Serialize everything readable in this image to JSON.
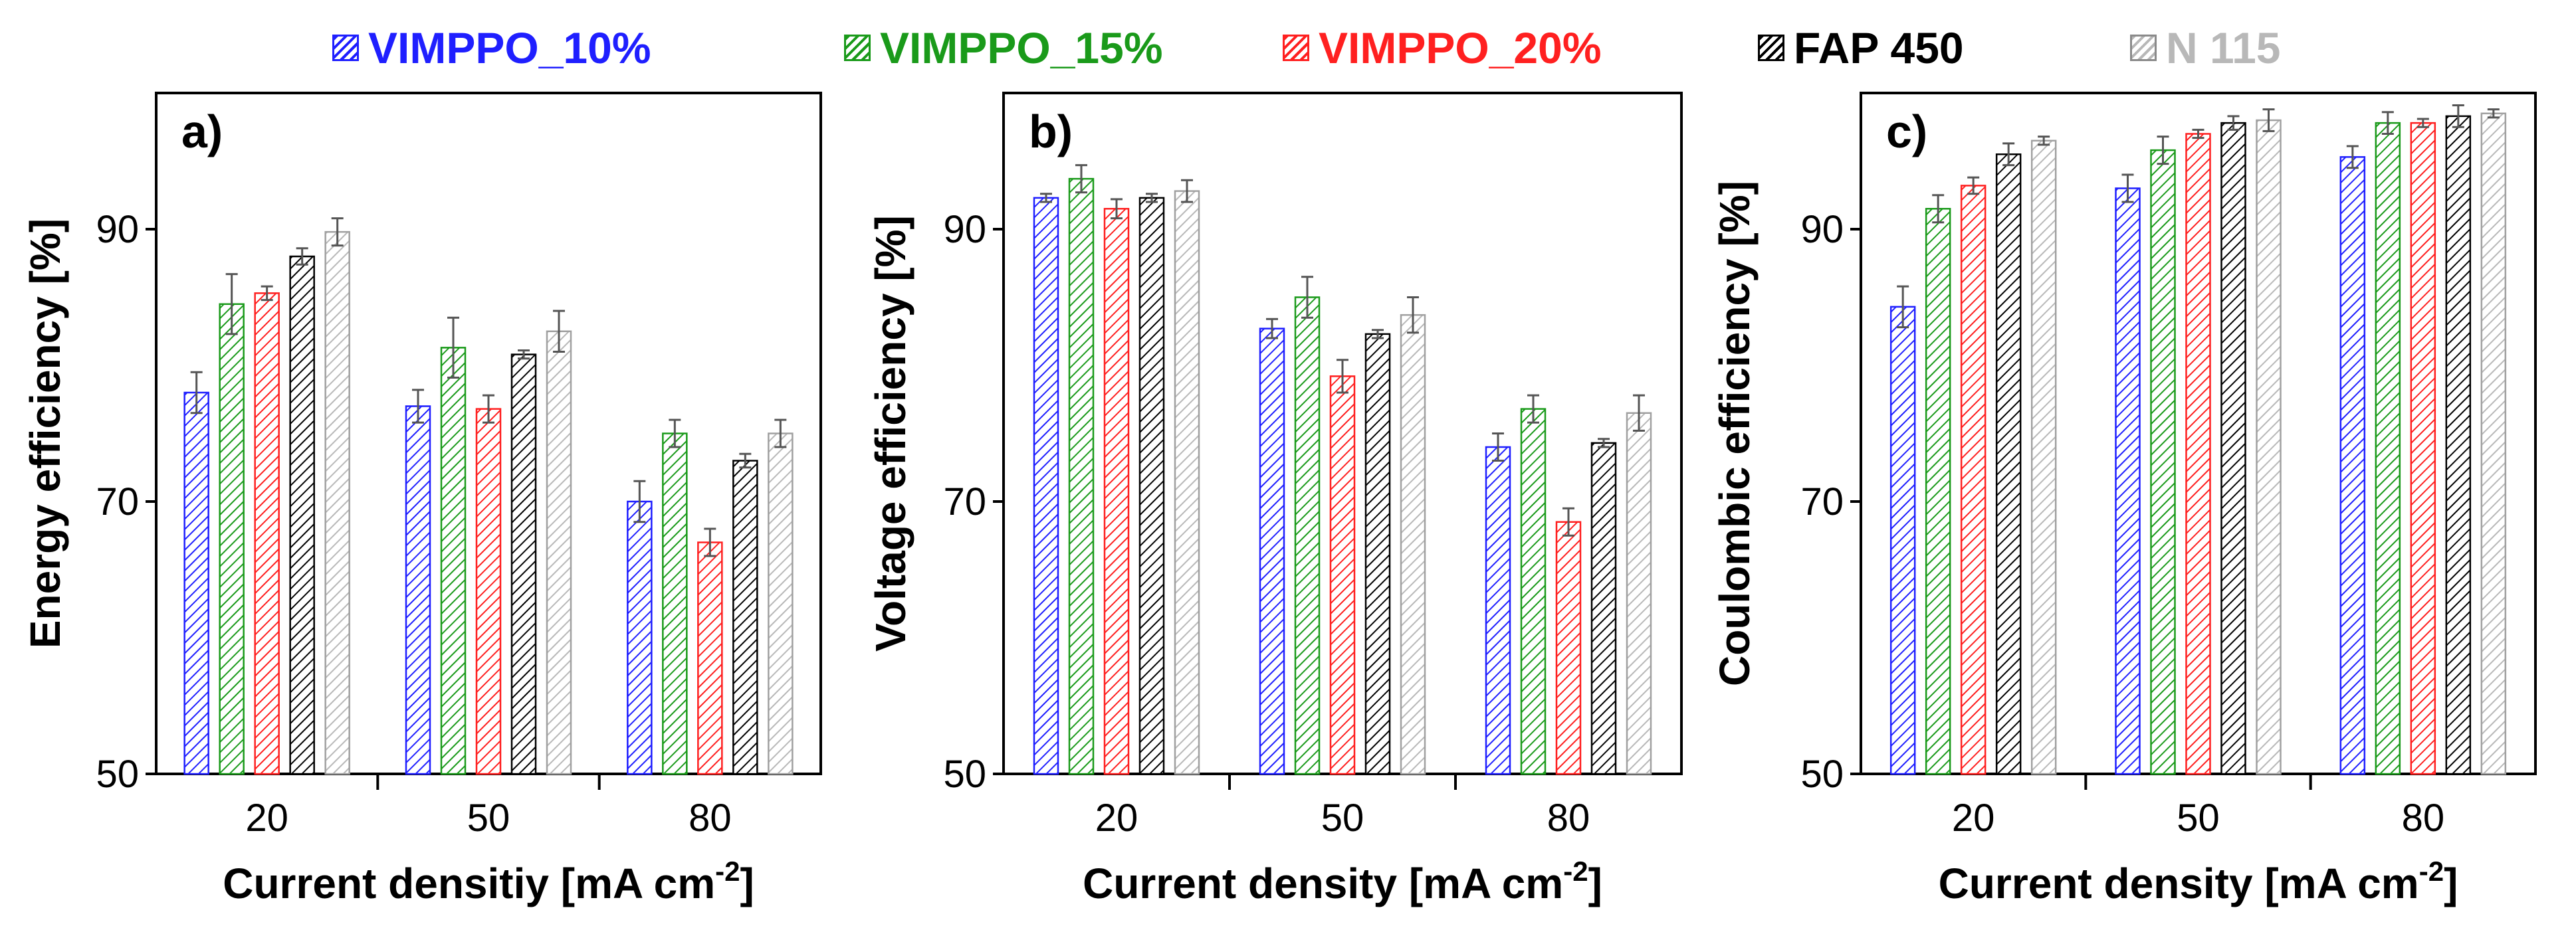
{
  "legend": [
    {
      "name": "VIMPPO_10%",
      "color": "#1f1fff"
    },
    {
      "name": "VIMPPO_15%",
      "color": "#1a9a1a"
    },
    {
      "name": "VIMPPO_20%",
      "color": "#ff2020"
    },
    {
      "name": "FAP 450",
      "color": "#000000"
    },
    {
      "name": "N 115",
      "color": "#b8b8b8"
    }
  ],
  "chart_data": [
    {
      "type": "bar",
      "panel_label": "a)",
      "categories": [
        "20",
        "50",
        "80"
      ],
      "xlabel": "Current densitiy [mA cm",
      "xlabel_sup": "-2",
      "xlabel_end": "]",
      "ylabel": "Energy efficiency [%]",
      "ylim": [
        50,
        100
      ],
      "yticks": [
        "50",
        "70",
        "90"
      ],
      "series": [
        {
          "name": "VIMPPO_10%",
          "values": [
            78.0,
            77.0,
            70.0
          ],
          "errors": [
            1.5,
            1.2,
            1.5
          ]
        },
        {
          "name": "VIMPPO_15%",
          "values": [
            84.5,
            81.3,
            75.0
          ],
          "errors": [
            2.2,
            2.2,
            1.0
          ]
        },
        {
          "name": "VIMPPO_20%",
          "values": [
            85.3,
            76.8,
            67.0
          ],
          "errors": [
            0.5,
            1.0,
            1.0
          ]
        },
        {
          "name": "FAP 450",
          "values": [
            88.0,
            80.8,
            73.0
          ],
          "errors": [
            0.6,
            0.3,
            0.5
          ]
        },
        {
          "name": "N 115",
          "values": [
            89.8,
            82.5,
            75.0
          ],
          "errors": [
            1.0,
            1.5,
            1.0
          ]
        }
      ]
    },
    {
      "type": "bar",
      "panel_label": "b)",
      "categories": [
        "20",
        "50",
        "80"
      ],
      "xlabel": "Current density [mA cm",
      "xlabel_sup": "-2",
      "xlabel_end": "]",
      "ylabel": "Voltage efficiency [%]",
      "ylim": [
        50,
        100
      ],
      "yticks": [
        "50",
        "70",
        "90"
      ],
      "series": [
        {
          "name": "VIMPPO_10%",
          "values": [
            92.3,
            82.7,
            74.0
          ],
          "errors": [
            0.3,
            0.7,
            1.0
          ]
        },
        {
          "name": "VIMPPO_15%",
          "values": [
            93.7,
            85.0,
            76.8
          ],
          "errors": [
            1.0,
            1.5,
            1.0
          ]
        },
        {
          "name": "VIMPPO_20%",
          "values": [
            91.5,
            79.2,
            68.5
          ],
          "errors": [
            0.7,
            1.2,
            1.0
          ]
        },
        {
          "name": "FAP 450",
          "values": [
            92.3,
            82.3,
            74.3
          ],
          "errors": [
            0.3,
            0.3,
            0.3
          ]
        },
        {
          "name": "N 115",
          "values": [
            92.8,
            83.7,
            76.5
          ],
          "errors": [
            0.8,
            1.3,
            1.3
          ]
        }
      ]
    },
    {
      "type": "bar",
      "panel_label": "c)",
      "categories": [
        "20",
        "50",
        "80"
      ],
      "xlabel": "Current density [mA cm",
      "xlabel_sup": "-2",
      "xlabel_end": "]",
      "ylabel": "Coulombic efficiency [%]",
      "ylim": [
        50,
        100
      ],
      "yticks": [
        "50",
        "70",
        "90"
      ],
      "series": [
        {
          "name": "VIMPPO_10%",
          "values": [
            84.3,
            93.0,
            95.3
          ],
          "errors": [
            1.5,
            1.0,
            0.8
          ]
        },
        {
          "name": "VIMPPO_15%",
          "values": [
            91.5,
            95.8,
            97.8
          ],
          "errors": [
            1.0,
            1.0,
            0.8
          ]
        },
        {
          "name": "VIMPPO_20%",
          "values": [
            93.2,
            97.0,
            97.8
          ],
          "errors": [
            0.6,
            0.3,
            0.3
          ]
        },
        {
          "name": "FAP 450",
          "values": [
            95.5,
            97.8,
            98.3
          ],
          "errors": [
            0.8,
            0.5,
            0.8
          ]
        },
        {
          "name": "N 115",
          "values": [
            96.5,
            98.0,
            98.5
          ],
          "errors": [
            0.3,
            0.8,
            0.3
          ]
        }
      ]
    }
  ]
}
